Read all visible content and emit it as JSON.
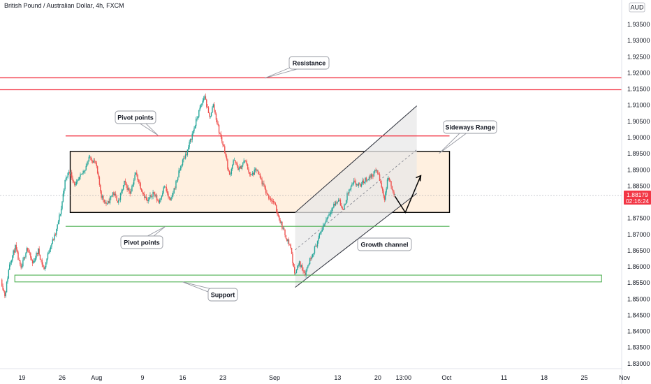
{
  "header": {
    "title": "British Pound / Australian Dollar, 4h, FXCM",
    "currency": "AUD"
  },
  "price_tag": {
    "price": "1.88179",
    "countdown": "02:16:24"
  },
  "chart_data": {
    "type": "candlestick",
    "instrument": "British Pound / Australian Dollar",
    "timeframe": "4h",
    "source": "FXCM",
    "currency": "AUD",
    "ylim": [
      1.825,
      1.94
    ],
    "y_ticks": [
      "1.93500",
      "1.93000",
      "1.92500",
      "1.92000",
      "1.91500",
      "1.91000",
      "1.90500",
      "1.90000",
      "1.89500",
      "1.89000",
      "1.88500",
      "1.88000",
      "1.87500",
      "1.87000",
      "1.86500",
      "1.86000",
      "1.85500",
      "1.85000",
      "1.84500",
      "1.84000",
      "1.83500",
      "1.83000"
    ],
    "x_ticks": [
      "19",
      "26",
      "Aug",
      "9",
      "16",
      "23",
      "Sep",
      "13",
      "20",
      "13:00",
      "Oct",
      "11",
      "18",
      "25",
      "Nov"
    ],
    "x_tick_days": [
      0,
      7,
      13,
      21,
      28,
      35,
      44,
      55,
      62,
      66.5,
      74,
      84,
      91,
      98,
      105
    ],
    "x_range_days": [
      -3.5,
      106
    ],
    "key_points": [
      {
        "day": -3.5,
        "price": 1.856
      },
      {
        "day": -2.8,
        "price": 1.851
      },
      {
        "day": -2,
        "price": 1.861
      },
      {
        "day": -1,
        "price": 1.866
      },
      {
        "day": 0,
        "price": 1.859
      },
      {
        "day": 1,
        "price": 1.866
      },
      {
        "day": 2,
        "price": 1.861
      },
      {
        "day": 3,
        "price": 1.865
      },
      {
        "day": 4,
        "price": 1.859
      },
      {
        "day": 5,
        "price": 1.866
      },
      {
        "day": 6,
        "price": 1.87
      },
      {
        "day": 6.5,
        "price": 1.874
      },
      {
        "day": 7,
        "price": 1.878
      },
      {
        "day": 7.6,
        "price": 1.886
      },
      {
        "day": 8.4,
        "price": 1.89
      },
      {
        "day": 9.5,
        "price": 1.885
      },
      {
        "day": 11,
        "price": 1.89
      },
      {
        "day": 12,
        "price": 1.894
      },
      {
        "day": 13,
        "price": 1.892
      },
      {
        "day": 14,
        "price": 1.882
      },
      {
        "day": 15,
        "price": 1.879
      },
      {
        "day": 16,
        "price": 1.883
      },
      {
        "day": 17,
        "price": 1.88
      },
      {
        "day": 18,
        "price": 1.886
      },
      {
        "day": 19,
        "price": 1.883
      },
      {
        "day": 20,
        "price": 1.889
      },
      {
        "day": 21,
        "price": 1.884
      },
      {
        "day": 22,
        "price": 1.88
      },
      {
        "day": 23,
        "price": 1.883
      },
      {
        "day": 24,
        "price": 1.88
      },
      {
        "day": 25,
        "price": 1.885
      },
      {
        "day": 26,
        "price": 1.88
      },
      {
        "day": 27,
        "price": 1.886
      },
      {
        "day": 28,
        "price": 1.892
      },
      {
        "day": 29,
        "price": 1.896
      },
      {
        "day": 30,
        "price": 1.902
      },
      {
        "day": 31,
        "price": 1.908
      },
      {
        "day": 32,
        "price": 1.913
      },
      {
        "day": 32.8,
        "price": 1.906
      },
      {
        "day": 33.5,
        "price": 1.91
      },
      {
        "day": 34.5,
        "price": 1.902
      },
      {
        "day": 35.5,
        "price": 1.896
      },
      {
        "day": 36.3,
        "price": 1.888
      },
      {
        "day": 37,
        "price": 1.893
      },
      {
        "day": 38,
        "price": 1.89
      },
      {
        "day": 39,
        "price": 1.893
      },
      {
        "day": 40,
        "price": 1.888
      },
      {
        "day": 41,
        "price": 1.89
      },
      {
        "day": 42,
        "price": 1.886
      },
      {
        "day": 43,
        "price": 1.882
      },
      {
        "day": 44,
        "price": 1.88
      },
      {
        "day": 45,
        "price": 1.875
      },
      {
        "day": 46,
        "price": 1.87
      },
      {
        "day": 47,
        "price": 1.866
      },
      {
        "day": 47.6,
        "price": 1.858
      },
      {
        "day": 48.5,
        "price": 1.861
      },
      {
        "day": 49.5,
        "price": 1.858
      },
      {
        "day": 50.5,
        "price": 1.863
      },
      {
        "day": 51.5,
        "price": 1.867
      },
      {
        "day": 52.5,
        "price": 1.872
      },
      {
        "day": 53.5,
        "price": 1.876
      },
      {
        "day": 54.5,
        "price": 1.879
      },
      {
        "day": 55.5,
        "price": 1.881
      },
      {
        "day": 56,
        "price": 1.877
      },
      {
        "day": 57,
        "price": 1.883
      },
      {
        "day": 58,
        "price": 1.886
      },
      {
        "day": 59,
        "price": 1.885
      },
      {
        "day": 60,
        "price": 1.887
      },
      {
        "day": 61,
        "price": 1.888
      },
      {
        "day": 62,
        "price": 1.89
      },
      {
        "day": 62.5,
        "price": 1.887
      },
      {
        "day": 63.3,
        "price": 1.881
      },
      {
        "day": 64,
        "price": 1.888
      },
      {
        "day": 64.8,
        "price": 1.883
      },
      {
        "day": 65,
        "price": 1.8818
      }
    ],
    "levels": {
      "resistance": [
        1.9185,
        1.9148
      ],
      "pivot_high": 1.9005,
      "pivot_low": 1.8725,
      "range_top": 1.8957,
      "range_bottom": 1.8768,
      "support_top": 1.8574,
      "support_bottom": 1.8553
    },
    "current_price": 1.88179,
    "annotations": [
      {
        "label": "Resistance"
      },
      {
        "label": "Pivot points"
      },
      {
        "label": "Pivot points"
      },
      {
        "label": "Sideways Range"
      },
      {
        "label": "Growth channel"
      },
      {
        "label": "Support"
      }
    ]
  },
  "colors": {
    "up": "#26a69a",
    "down": "#ef5350",
    "resistance": "#f23645",
    "pivot_low": "#4caf50",
    "support": "#4caf50",
    "range_fill": "#fff0e0",
    "channel_fill": "#e8e8e8",
    "price_tag": "#f23645"
  }
}
